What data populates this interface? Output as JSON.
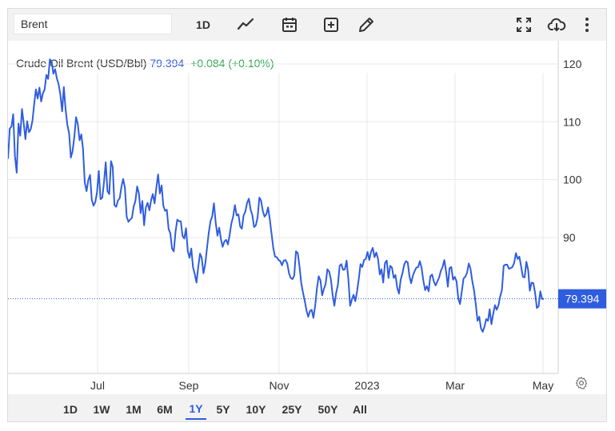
{
  "toolbar": {
    "symbol_value": "Brent",
    "interval_label": "1D",
    "icons": [
      "line-chart-icon",
      "calendar-icon",
      "add-indicator-icon",
      "draw-pencil-icon",
      "fullscreen-icon",
      "download-icon",
      "more-icon"
    ]
  },
  "header": {
    "name": "Crude Oil Brent (USD/Bbl)",
    "price": "79.394",
    "change": "+0.084 (+0.10%)"
  },
  "range_buttons": [
    "1D",
    "1W",
    "1M",
    "6M",
    "1Y",
    "5Y",
    "10Y",
    "25Y",
    "50Y",
    "All"
  ],
  "active_range": "1Y",
  "colors": {
    "line": "#2f5de0",
    "change_positive": "#2fa84f",
    "grid": "#e8e8e8"
  },
  "chart_data": {
    "type": "line",
    "title": "Crude Oil Brent (USD/Bbl)",
    "x_tick_labels": [
      "Jul",
      "Sep",
      "Nov",
      "2023",
      "Mar",
      "May"
    ],
    "y_tick_labels": [
      "90",
      "100",
      "110",
      "120"
    ],
    "ylim": [
      66.5,
      124
    ],
    "grid": true,
    "last_value_label": "79.394",
    "series": [
      {
        "values": [
          103.6,
          108.8,
          109.2,
          111.3,
          104.0,
          101.2,
          109.7,
          107.6,
          112.2,
          109.8,
          107.0,
          110.1,
          108.2,
          108.7,
          110.2,
          113.0,
          115.6,
          114.0,
          115.9,
          113.5,
          114.9,
          115.6,
          118.1,
          117.4,
          120.8,
          120.4,
          118.3,
          119.1,
          117.5,
          116.5,
          114.7,
          111.8,
          116.0,
          112.2,
          109.5,
          108.0,
          103.8,
          104.9,
          107.3,
          110.8,
          109.6,
          106.8,
          107.8,
          105.3,
          99.5,
          98.0,
          99.9,
          100.8,
          96.5,
          95.5,
          96.1,
          97.8,
          101.5,
          96.6,
          96.9,
          99.5,
          103.0,
          98.0,
          97.5,
          103.2,
          102.2,
          95.6,
          95.3,
          96.4,
          96.8,
          98.8,
          100.1,
          98.6,
          93.6,
          92.7,
          93.1,
          93.4,
          95.3,
          96.3,
          98.8,
          97.6,
          94.2,
          96.3,
          92.1,
          95.2,
          96.0,
          94.7,
          96.5,
          97.5,
          95.9,
          98.6,
          100.9,
          97.6,
          99.0,
          95.5,
          94.6,
          94.8,
          91.5,
          90.7,
          88.1,
          87.6,
          91.0,
          93.1,
          92.8,
          92.8,
          90.3,
          89.8,
          91.6,
          87.6,
          86.5,
          88.1,
          84.9,
          83.7,
          82.2,
          84.9,
          87.2,
          86.5,
          83.8,
          85.4,
          88.1,
          90.8,
          92.8,
          93.6,
          95.9,
          92.6,
          90.3,
          91.7,
          89.7,
          88.4,
          89.3,
          89.6,
          88.8,
          90.5,
          92.4,
          93.6,
          95.6,
          93.8,
          94.0,
          91.9,
          91.5,
          93.8,
          94.5,
          96.0,
          96.7,
          94.8,
          93.9,
          91.8,
          92.1,
          93.5,
          96.9,
          96.4,
          94.6,
          93.6,
          94.0,
          95.2,
          93.1,
          90.7,
          88.2,
          86.7,
          86.6,
          86.1,
          85.9,
          85.2,
          86.0,
          86.1,
          85.5,
          83.8,
          83.0,
          82.8,
          83.4,
          87.6,
          87.3,
          85.0,
          82.2,
          80.5,
          79.1,
          77.4,
          76.3,
          77.3,
          77.5,
          76.1,
          78.2,
          81.2,
          83.3,
          82.6,
          80.0,
          81.1,
          82.0,
          84.5,
          84.1,
          82.8,
          80.1,
          78.2,
          80.4,
          81.8,
          85.1,
          85.4,
          84.4,
          84.5,
          86.0,
          82.8,
          78.2,
          79.2,
          80.1,
          79.0,
          80.7,
          82.9,
          85.4,
          84.9,
          86.1,
          86.3,
          87.5,
          86.1,
          87.5,
          88.2,
          86.6,
          87.4,
          86.3,
          83.6,
          84.5,
          82.2,
          85.6,
          86.0,
          83.0,
          85.1,
          84.8,
          83.0,
          83.5,
          81.3,
          80.3,
          82.7,
          83.8,
          85.3,
          85.9,
          85.7,
          83.3,
          82.1,
          83.4,
          84.2,
          84.8,
          84.9,
          85.9,
          84.7,
          82.5,
          80.9,
          81.6,
          80.7,
          83.3,
          83.6,
          82.4,
          81.7,
          82.4,
          83.1,
          84.2,
          84.9,
          86.1,
          84.1,
          81.5,
          84.7,
          84.9,
          82.7,
          83.2,
          82.4,
          79.4,
          78.5,
          80.6,
          82.9,
          83.2,
          83.9,
          85.5,
          84.6,
          82.5,
          80.9,
          78.5,
          75.6,
          76.3,
          74.3,
          73.7,
          74.6,
          75.9,
          75.6,
          77.6,
          75.0,
          76.8,
          78.3,
          77.5,
          78.3,
          79.8,
          80.9,
          85.1,
          85.3,
          85.3,
          84.6,
          84.7,
          84.9,
          85.6,
          87.3,
          86.3,
          86.7,
          85.0,
          83.2,
          83.1,
          85.8,
          84.4,
          80.8,
          82.2,
          82.1,
          80.4,
          77.8,
          78.1,
          80.7,
          79.4,
          79.4
        ]
      }
    ]
  }
}
